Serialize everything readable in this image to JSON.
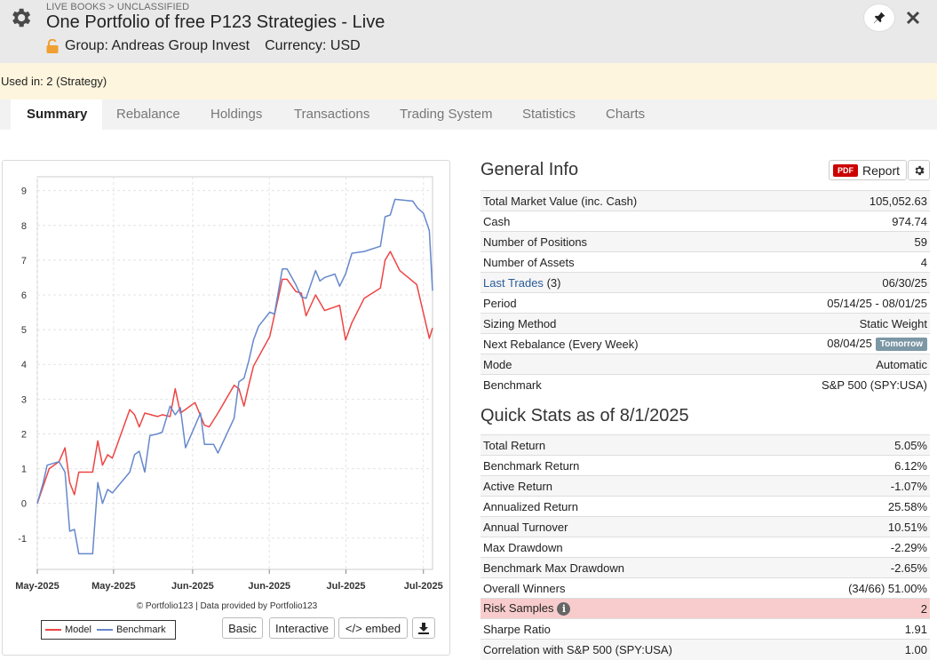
{
  "header": {
    "breadcrumb": "LIVE BOOKS > UNCLASSIFIED",
    "title": "One Portfolio of free P123 Strategies - Live",
    "group": "Group: Andreas Group Invest",
    "currency": "Currency: USD"
  },
  "used_in": "Used in: 2 (Strategy)",
  "tabs": [
    "Summary",
    "Rebalance",
    "Holdings",
    "Transactions",
    "Trading System",
    "Statistics",
    "Charts"
  ],
  "general_info": {
    "title": "General Info",
    "report_label": "Report",
    "pdf_label": "PDF",
    "rows": [
      {
        "label": "Total Market Value (inc. Cash)",
        "value": "105,052.63"
      },
      {
        "label": "Cash",
        "value": "974.74"
      },
      {
        "label": "Number of Positions",
        "value": "59"
      },
      {
        "label": "Number of Assets",
        "value": "4"
      },
      {
        "label": "Last Trades",
        "count": "(3)",
        "value": "06/30/25"
      },
      {
        "label": "Period",
        "value": "05/14/25 - 08/01/25"
      },
      {
        "label": "Sizing Method",
        "value": "Static Weight"
      },
      {
        "label": "Next Rebalance (Every Week)",
        "value": "08/04/25",
        "badge": "Tomorrow"
      },
      {
        "label": "Mode",
        "value": "Automatic"
      },
      {
        "label": "Benchmark",
        "value": "S&P 500 (SPY:USA)"
      }
    ]
  },
  "quick_stats": {
    "title": "Quick Stats as of 8/1/2025",
    "rows": [
      {
        "label": "Total Return",
        "value": "5.05%"
      },
      {
        "label": "Benchmark Return",
        "value": "6.12%"
      },
      {
        "label": "Active Return",
        "value": "-1.07%"
      },
      {
        "label": "Annualized Return",
        "value": "25.58%"
      },
      {
        "label": "Annual Turnover",
        "value": "10.51%"
      },
      {
        "label": "Max Drawdown",
        "value": "-2.29%"
      },
      {
        "label": "Benchmark Max Drawdown",
        "value": "-2.65%"
      },
      {
        "label": "Overall Winners",
        "value": "(34/66) 51.00%"
      },
      {
        "label": "Risk Samples",
        "value": "2"
      },
      {
        "label": "Sharpe Ratio",
        "value": "1.91"
      },
      {
        "label": "Correlation with S&P 500 (SPY:USA)",
        "value": "1.00"
      }
    ]
  },
  "chart_controls": {
    "credit": "© Portfolio123 | Data provided by Portfolio123",
    "basic": "Basic",
    "interactive": "Interactive",
    "embed": "</> embed"
  },
  "colors": {
    "model": "#ee4444",
    "benchmark": "#6688cc",
    "negative": "#cc2222",
    "link": "#2b5b98"
  },
  "chart_data": {
    "type": "line",
    "ylim": [
      -1.9,
      9.4
    ],
    "yticks": [
      -1,
      0,
      1,
      2,
      3,
      4,
      5,
      6,
      7,
      8,
      9
    ],
    "xticks": [
      "May-2025",
      "May-2025",
      "Jun-2025",
      "Jun-2025",
      "Jul-2025",
      "Jul-2025"
    ],
    "x_range": [
      0,
      100
    ],
    "xtick_positions": [
      0,
      19.3,
      39.3,
      58.7,
      78.1,
      97.7
    ],
    "series": [
      {
        "name": "Model",
        "points": [
          [
            0,
            0
          ],
          [
            1.5,
            0.5
          ],
          [
            3,
            1
          ],
          [
            5.5,
            1.2
          ],
          [
            7,
            1.6
          ],
          [
            8.2,
            0.6
          ],
          [
            9.4,
            0.25
          ],
          [
            10.5,
            0.9
          ],
          [
            14,
            0.9
          ],
          [
            15.3,
            1.8
          ],
          [
            16.5,
            1.1
          ],
          [
            17.8,
            1.4
          ],
          [
            19,
            1.3
          ],
          [
            23.4,
            2.7
          ],
          [
            24.6,
            2.55
          ],
          [
            25.8,
            2.2
          ],
          [
            27.2,
            2.6
          ],
          [
            30.4,
            2.5
          ],
          [
            31.6,
            2.55
          ],
          [
            33.6,
            2.5
          ],
          [
            34.9,
            3.3
          ],
          [
            36.2,
            2.6
          ],
          [
            39.9,
            2.9
          ],
          [
            42.3,
            2.25
          ],
          [
            43.5,
            2.2
          ],
          [
            45.7,
            2.6
          ],
          [
            49.8,
            3.4
          ],
          [
            51,
            3.3
          ],
          [
            52.3,
            2.8
          ],
          [
            53.5,
            3.4
          ],
          [
            54.7,
            3.95
          ],
          [
            58.8,
            4.8
          ],
          [
            62,
            6.45
          ],
          [
            63.2,
            6.45
          ],
          [
            65.4,
            6.1
          ],
          [
            66.8,
            6.05
          ],
          [
            68,
            5.4
          ],
          [
            70.4,
            6
          ],
          [
            72.7,
            5.55
          ],
          [
            76.5,
            5.7
          ],
          [
            78,
            4.7
          ],
          [
            79.6,
            5.2
          ],
          [
            82.7,
            5.9
          ],
          [
            86.8,
            6.2
          ],
          [
            88,
            7
          ],
          [
            89.3,
            7.25
          ],
          [
            91.7,
            6.7
          ],
          [
            96,
            6.3
          ],
          [
            99.2,
            4.75
          ],
          [
            100,
            5.05
          ]
        ]
      },
      {
        "name": "Benchmark",
        "points": [
          [
            0,
            0
          ],
          [
            1.5,
            0.6
          ],
          [
            2.5,
            1.1
          ],
          [
            5.5,
            1.2
          ],
          [
            7,
            0.9
          ],
          [
            8.2,
            -0.8
          ],
          [
            9.4,
            -0.75
          ],
          [
            10.5,
            -1.45
          ],
          [
            14,
            -1.45
          ],
          [
            15.3,
            0.6
          ],
          [
            16.5,
            0
          ],
          [
            17.8,
            0.4
          ],
          [
            19,
            0.3
          ],
          [
            23.4,
            0.9
          ],
          [
            24.6,
            1.4
          ],
          [
            25.8,
            1.5
          ],
          [
            27.2,
            0.9
          ],
          [
            28.5,
            1.95
          ],
          [
            30.4,
            2
          ],
          [
            31.6,
            2.05
          ],
          [
            33.6,
            2.8
          ],
          [
            34.9,
            2.55
          ],
          [
            36.2,
            2.75
          ],
          [
            37.5,
            1.6
          ],
          [
            41.3,
            2.6
          ],
          [
            42.3,
            1.7
          ],
          [
            44.6,
            1.7
          ],
          [
            45.7,
            1.45
          ],
          [
            49.8,
            2.45
          ],
          [
            51,
            3.5
          ],
          [
            52.3,
            3.6
          ],
          [
            53.5,
            4.1
          ],
          [
            54.7,
            4.7
          ],
          [
            56,
            5.1
          ],
          [
            58.8,
            5.5
          ],
          [
            60,
            5.45
          ],
          [
            62,
            6.75
          ],
          [
            63.2,
            6.75
          ],
          [
            65.4,
            6.3
          ],
          [
            66.8,
            5.95
          ],
          [
            68,
            5.9
          ],
          [
            70.4,
            6.7
          ],
          [
            71.5,
            6.4
          ],
          [
            72.7,
            6.5
          ],
          [
            75.3,
            6.6
          ],
          [
            76.5,
            6.25
          ],
          [
            78,
            6.6
          ],
          [
            79.6,
            7.2
          ],
          [
            82.7,
            7.25
          ],
          [
            86.8,
            7.4
          ],
          [
            88,
            8.25
          ],
          [
            89.3,
            8.3
          ],
          [
            90.5,
            8.75
          ],
          [
            95,
            8.7
          ],
          [
            96.2,
            8.5
          ],
          [
            97.7,
            8.35
          ],
          [
            99.2,
            7.85
          ],
          [
            100,
            6.12
          ]
        ]
      }
    ]
  }
}
